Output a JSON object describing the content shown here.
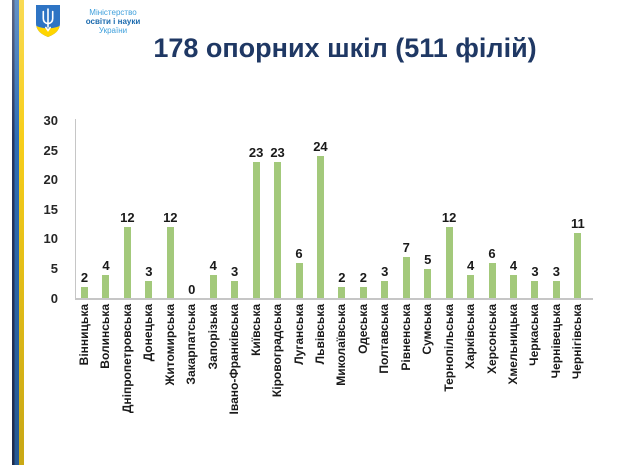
{
  "logo": {
    "line1": "Міністерство",
    "line2": "освіти і науки",
    "line3": "України"
  },
  "title": "178 опорних шкіл (511 філій)",
  "chart_data": {
    "type": "bar",
    "title": "178 опорних шкіл (511 філій)",
    "categories": [
      "Вінницька",
      "Волинська",
      "Дніпропетровська",
      "Донецька",
      "Житомирська",
      "Закарпатська",
      "Запорізька",
      "Івано-Франківська",
      "Київська",
      "Кіровоградська",
      "Луганська",
      "Львівська",
      "Миколаївська",
      "Одеська",
      "Полтавська",
      "Рівненська",
      "Сумська",
      "Тернопільська",
      "Харківська",
      "Херсонська",
      "Хмельницька",
      "Черкаська",
      "Чернівецька",
      "Чернігівська"
    ],
    "values": [
      2,
      4,
      12,
      3,
      12,
      0,
      4,
      3,
      23,
      23,
      6,
      24,
      2,
      2,
      3,
      7,
      5,
      12,
      4,
      6,
      4,
      3,
      3,
      11
    ],
    "xlabel": "",
    "ylabel": "",
    "ylim": [
      0,
      30
    ],
    "yticks": [
      0,
      5,
      10,
      15,
      20,
      25,
      30
    ],
    "grid": false,
    "value_labels": true,
    "bar_color": "#A3C97B"
  },
  "colors": {
    "title": "#1F3864",
    "bar": "#A3C97B",
    "axis_line": "#C6C6C6",
    "stripe_navy": "#26355F",
    "stripe_blue": "#2E6DB4",
    "stripe_yellow": "#F7CE1A",
    "logo_light_blue": "#3FA0DC",
    "logo_dark_blue": "#1B6AAE",
    "shield_blue": "#2E74C4",
    "shield_yellow": "#FFD500",
    "trident_white": "#FFFFFF"
  }
}
